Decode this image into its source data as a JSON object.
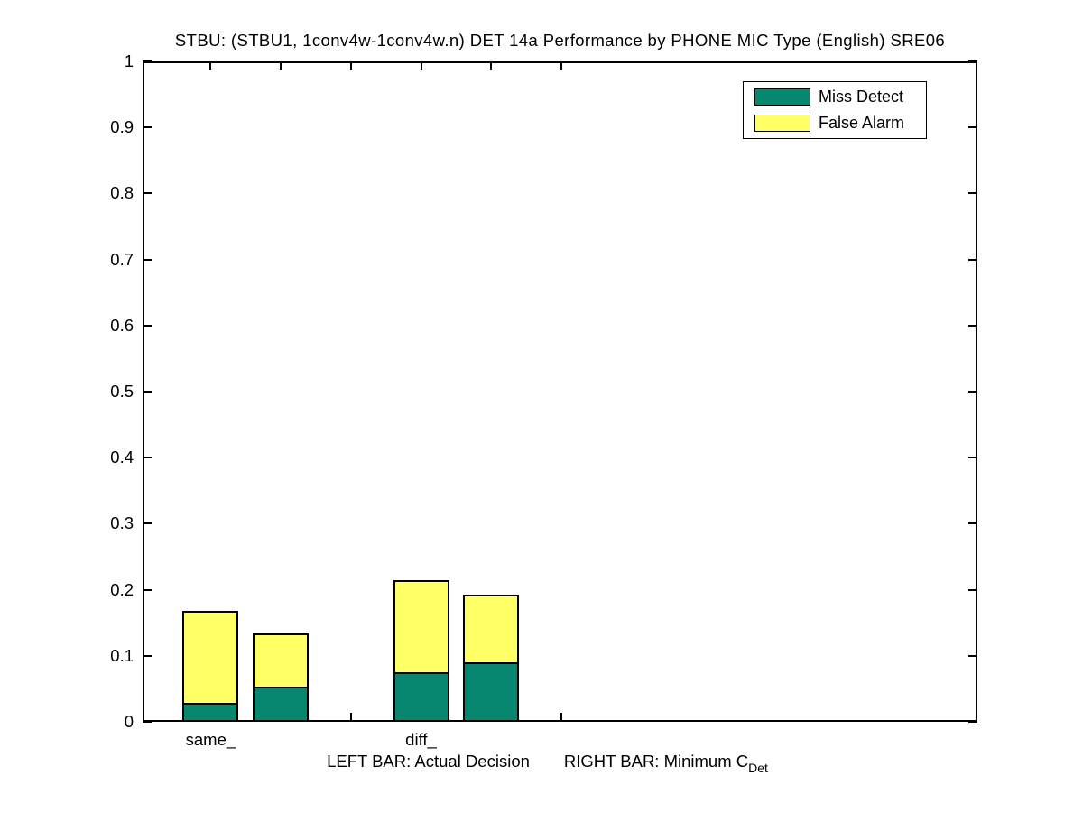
{
  "figure": {
    "title": "STBU: (STBU1, 1conv4w-1conv4w.n) DET 14a Performance by PHONE MIC Type (English) SRE06"
  },
  "caption": {
    "left": "LEFT BAR: Actual Decision",
    "right": "RIGHT BAR: Minimum C",
    "sub": "Det"
  },
  "chart_data": {
    "type": "bar",
    "stacked": true,
    "title": "STBU: (STBU1, 1conv4w-1conv4w.n) DET 14a Performance by PHONE MIC Type (English) SRE06",
    "xlabel": "LEFT BAR: Actual Decision      RIGHT BAR: Minimum C_Det",
    "ylabel": "",
    "ylim": [
      0,
      1
    ],
    "grid": false,
    "legend_position": "upper right",
    "legend": [
      {
        "label": "Miss Detect",
        "color": "#078770"
      },
      {
        "label": "False Alarm",
        "color": "#FFFF66"
      }
    ],
    "y_ticks": [
      0,
      0.1,
      0.2,
      0.3,
      0.4,
      0.5,
      0.6,
      0.7,
      0.8,
      0.9,
      1
    ],
    "y_tick_labels": [
      "0",
      "0.1",
      "0.2",
      "0.3",
      "0.4",
      "0.5",
      "0.6",
      "0.7",
      "0.8",
      "0.9",
      "1"
    ],
    "x_tick_positions": [
      1,
      2,
      3,
      4,
      5,
      6
    ],
    "x_tick_labels": [
      "same_",
      "",
      "",
      "diff_",
      "",
      ""
    ],
    "bars": [
      {
        "group": "same_",
        "bar": "Actual Decision",
        "x": 1,
        "miss_detect": 0.026,
        "false_alarm": 0.142,
        "total": 0.168
      },
      {
        "group": "same_",
        "bar": "Minimum CDet",
        "x": 2,
        "miss_detect": 0.051,
        "false_alarm": 0.083,
        "total": 0.134
      },
      {
        "group": "diff_",
        "bar": "Actual Decision",
        "x": 4,
        "miss_detect": 0.073,
        "false_alarm": 0.142,
        "total": 0.215
      },
      {
        "group": "diff_",
        "bar": "Minimum CDet",
        "x": 5,
        "miss_detect": 0.088,
        "false_alarm": 0.104,
        "total": 0.192
      }
    ],
    "colors": {
      "miss_detect": "#078770",
      "false_alarm": "#FFFF66",
      "axis": "#000000",
      "background": "#FFFFFF"
    }
  }
}
